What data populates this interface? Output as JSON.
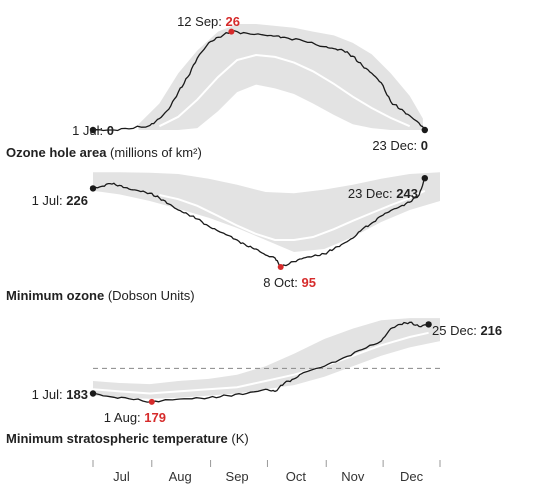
{
  "colors": {
    "band": "#e3e3e3",
    "mean_line": "#ffffff",
    "series_line": "#1a1a1a",
    "highlight": "#d62b2b",
    "dashed_reference": "#888888"
  },
  "chart_data": [
    {
      "type": "line",
      "title": "Ozone hole area",
      "title_unit": "(millions of km²)",
      "xlim": [
        "2020-07-01",
        "2020-12-31"
      ],
      "ylim": [
        0,
        28
      ],
      "series": [
        {
          "role": "current-year",
          "x": [
            "2020-07-01",
            "2020-07-10",
            "2020-07-20",
            "2020-07-31",
            "2020-08-05",
            "2020-08-10",
            "2020-08-15",
            "2020-08-20",
            "2020-08-25",
            "2020-08-31",
            "2020-09-05",
            "2020-09-12",
            "2020-09-20",
            "2020-09-30",
            "2020-10-05",
            "2020-10-10",
            "2020-10-20",
            "2020-10-31",
            "2020-11-05",
            "2020-11-10",
            "2020-11-15",
            "2020-11-20",
            "2020-11-25",
            "2020-11-30",
            "2020-12-05",
            "2020-12-10",
            "2020-12-15",
            "2020-12-20",
            "2020-12-23"
          ],
          "y": [
            0,
            0,
            0.3,
            1.2,
            3,
            5.5,
            10,
            14,
            19,
            23,
            24.5,
            26,
            25.6,
            25,
            24.8,
            24.5,
            23.5,
            22,
            21.5,
            21,
            19.5,
            17,
            15,
            12.5,
            7.5,
            5.5,
            3.8,
            1.8,
            0
          ]
        },
        {
          "role": "average",
          "x": [
            "2020-08-05",
            "2020-08-15",
            "2020-08-25",
            "2020-09-05",
            "2020-09-15",
            "2020-09-25",
            "2020-10-05",
            "2020-10-15",
            "2020-10-25",
            "2020-11-05",
            "2020-11-15",
            "2020-11-25",
            "2020-12-05",
            "2020-12-15"
          ],
          "y": [
            1,
            3.5,
            8,
            14,
            18.5,
            19.8,
            19.3,
            17.8,
            15.5,
            12.2,
            8.8,
            5.8,
            3.2,
            1
          ]
        }
      ],
      "range_band": {
        "x": [
          "2020-07-25",
          "2020-08-05",
          "2020-08-15",
          "2020-08-25",
          "2020-09-05",
          "2020-09-15",
          "2020-09-25",
          "2020-10-05",
          "2020-10-15",
          "2020-10-25",
          "2020-11-05",
          "2020-11-15",
          "2020-11-25",
          "2020-12-05",
          "2020-12-15",
          "2020-12-22"
        ],
        "low": [
          0,
          0,
          0,
          0.5,
          5,
          10,
          12,
          11,
          9.5,
          7,
          4,
          1.5,
          0.5,
          0,
          0,
          0
        ],
        "high": [
          1.5,
          7,
          15,
          21,
          26,
          28,
          28,
          27.5,
          27,
          26,
          25,
          23,
          20,
          15,
          9,
          3
        ]
      },
      "annotations": [
        {
          "date": "2020-07-01",
          "label": "1 Jul:",
          "value": "0",
          "highlight": false
        },
        {
          "date": "2020-09-12",
          "label": "12 Sep:",
          "value": "26",
          "highlight": true
        },
        {
          "date": "2020-12-23",
          "label": "23 Dec:",
          "value": "0",
          "highlight": false
        }
      ]
    },
    {
      "type": "line",
      "title": "Minimum ozone",
      "title_unit": "(Dobson Units)",
      "xlim": [
        "2020-07-01",
        "2020-12-31"
      ],
      "ylim": [
        90,
        240
      ],
      "series": [
        {
          "role": "current-year",
          "x": [
            "2020-07-01",
            "2020-07-05",
            "2020-07-10",
            "2020-07-15",
            "2020-07-20",
            "2020-07-25",
            "2020-07-31",
            "2020-08-05",
            "2020-08-10",
            "2020-08-15",
            "2020-08-20",
            "2020-08-25",
            "2020-08-31",
            "2020-09-05",
            "2020-09-10",
            "2020-09-15",
            "2020-09-20",
            "2020-09-25",
            "2020-09-30",
            "2020-10-05",
            "2020-10-08",
            "2020-10-15",
            "2020-10-20",
            "2020-10-25",
            "2020-10-31",
            "2020-11-05",
            "2020-11-10",
            "2020-11-15",
            "2020-11-20",
            "2020-11-25",
            "2020-11-30",
            "2020-12-05",
            "2020-12-10",
            "2020-12-15",
            "2020-12-20",
            "2020-12-23"
          ],
          "y": [
            226,
            229,
            234,
            231,
            225,
            222,
            218,
            210,
            200,
            190,
            183,
            175,
            163,
            155,
            148,
            140,
            130,
            125,
            115,
            110,
            95,
            104,
            110,
            113,
            117,
            125,
            134,
            143,
            158,
            168,
            180,
            189,
            196,
            203,
            215,
            243
          ]
        },
        {
          "role": "average",
          "x": [
            "2020-08-05",
            "2020-08-15",
            "2020-08-25",
            "2020-09-05",
            "2020-09-15",
            "2020-09-25",
            "2020-10-05",
            "2020-10-15",
            "2020-10-25",
            "2020-11-05",
            "2020-11-15",
            "2020-11-25",
            "2020-12-05",
            "2020-12-15",
            "2020-12-23"
          ],
          "y": [
            215,
            208,
            197,
            180,
            164,
            150,
            140,
            140,
            145,
            158,
            172,
            185,
            198,
            210,
            222
          ]
        }
      ],
      "range_band": {
        "x": [
          "2020-07-01",
          "2020-07-15",
          "2020-07-31",
          "2020-08-15",
          "2020-08-31",
          "2020-09-15",
          "2020-09-30",
          "2020-10-15",
          "2020-10-31",
          "2020-11-15",
          "2020-11-30",
          "2020-12-15",
          "2020-12-31"
        ],
        "low": [
          222,
          216,
          205,
          192,
          177,
          160,
          140,
          120,
          125,
          145,
          170,
          190,
          205
        ],
        "high": [
          253,
          253,
          252,
          250,
          242,
          232,
          220,
          218,
          224,
          232,
          242,
          250,
          253
        ]
      },
      "annotations": [
        {
          "date": "2020-07-01",
          "label": "1 Jul:",
          "value": "226",
          "highlight": false
        },
        {
          "date": "2020-10-08",
          "label": "8 Oct:",
          "value": "95",
          "highlight": true
        },
        {
          "date": "2020-12-23",
          "label": "23 Dec:",
          "value": "243",
          "highlight": false
        }
      ]
    },
    {
      "type": "line",
      "title": "Minimum stratospheric temperature",
      "title_unit": "(K)",
      "xlim": [
        "2020-07-01",
        "2020-12-31"
      ],
      "ylim": [
        178,
        220
      ],
      "reference_line": {
        "y": 195,
        "style": "dashed"
      },
      "series": [
        {
          "role": "current-year",
          "x": [
            "2020-07-01",
            "2020-07-10",
            "2020-07-20",
            "2020-08-01",
            "2020-08-10",
            "2020-08-20",
            "2020-08-31",
            "2020-09-10",
            "2020-09-20",
            "2020-09-30",
            "2020-10-05",
            "2020-10-10",
            "2020-10-15",
            "2020-10-20",
            "2020-10-31",
            "2020-11-10",
            "2020-11-20",
            "2020-11-30",
            "2020-12-05",
            "2020-12-10",
            "2020-12-15",
            "2020-12-20",
            "2020-12-25"
          ],
          "y": [
            183,
            181.5,
            180.5,
            179,
            180,
            180.5,
            181,
            182,
            183,
            185,
            184,
            188,
            190,
            193,
            196,
            200,
            204,
            208,
            214,
            216,
            217,
            215,
            216
          ]
        },
        {
          "role": "average",
          "x": [
            "2020-07-01",
            "2020-07-15",
            "2020-07-31",
            "2020-08-15",
            "2020-08-31",
            "2020-09-15",
            "2020-09-30",
            "2020-10-15",
            "2020-10-31",
            "2020-11-15",
            "2020-11-30",
            "2020-12-15",
            "2020-12-25"
          ],
          "y": [
            185,
            184,
            183,
            184,
            185,
            186,
            189,
            192,
            196,
            201,
            206,
            210,
            212
          ]
        }
      ],
      "range_band": {
        "x": [
          "2020-07-01",
          "2020-07-15",
          "2020-07-31",
          "2020-08-15",
          "2020-08-31",
          "2020-09-15",
          "2020-09-30",
          "2020-10-15",
          "2020-10-31",
          "2020-11-15",
          "2020-11-30",
          "2020-12-15",
          "2020-12-31"
        ],
        "low": [
          182,
          181,
          180.5,
          181,
          182,
          183,
          185,
          187,
          191,
          196,
          201,
          205,
          208
        ],
        "high": [
          189,
          188,
          187.5,
          189,
          190,
          192,
          196,
          202,
          209,
          214,
          218,
          219,
          219
        ]
      },
      "annotations": [
        {
          "date": "2020-07-01",
          "label": "1 Jul:",
          "value": "183",
          "highlight": false
        },
        {
          "date": "2020-08-01",
          "label": "1 Aug:",
          "value": "179",
          "highlight": true
        },
        {
          "date": "2020-12-25",
          "label": "25 Dec:",
          "value": "216",
          "highlight": false
        }
      ]
    }
  ],
  "x_axis": {
    "ticks": [
      "2020-07-01",
      "2020-08-01",
      "2020-09-01",
      "2020-10-01",
      "2020-11-01",
      "2020-12-01",
      "2020-12-31"
    ],
    "month_labels": [
      {
        "date": "2020-07-16",
        "label": "Jul"
      },
      {
        "date": "2020-08-16",
        "label": "Aug"
      },
      {
        "date": "2020-09-15",
        "label": "Sep"
      },
      {
        "date": "2020-10-16",
        "label": "Oct"
      },
      {
        "date": "2020-11-15",
        "label": "Nov"
      },
      {
        "date": "2020-12-16",
        "label": "Dec"
      }
    ]
  }
}
